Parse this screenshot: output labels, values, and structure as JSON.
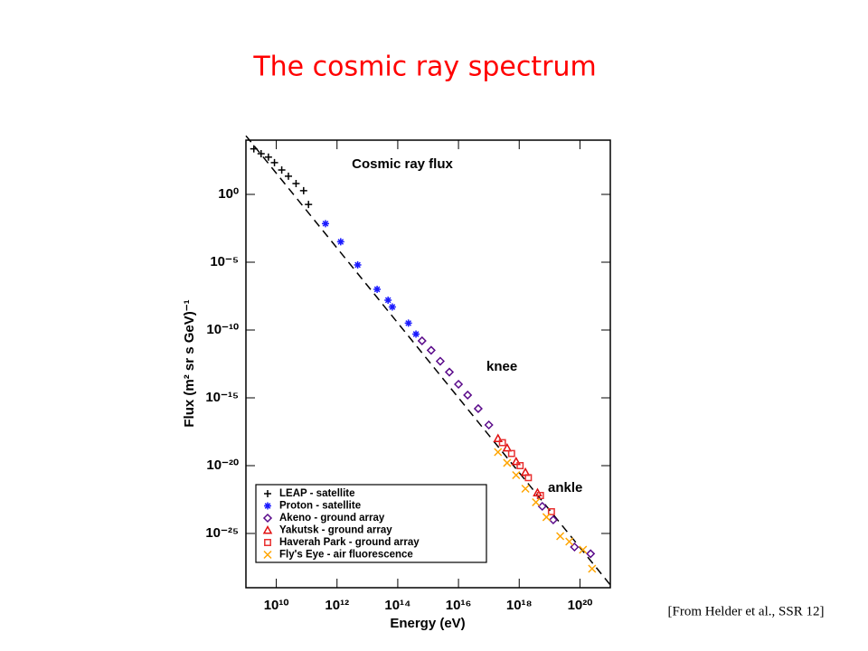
{
  "slide_title": "The cosmic ray spectrum",
  "source": "[From Helder et al., SSR 12]",
  "chart_data": {
    "type": "scatter",
    "title": "Cosmic ray flux",
    "x_label": "Energy (eV)",
    "y_label": "Flux (m² sr s GeV)⁻¹",
    "log_x": true,
    "log_y": true,
    "xlim": [
      1000000000.0,
      1e+21
    ],
    "ylim": [
      1e-29,
      10000.0
    ],
    "xticks": [
      {
        "value": 10000000000.0,
        "label": "10¹⁰"
      },
      {
        "value": 1000000000000.0,
        "label": "10¹²"
      },
      {
        "value": 100000000000000.0,
        "label": "10¹⁴"
      },
      {
        "value": 1e+16,
        "label": "10¹⁶"
      },
      {
        "value": 1e+18,
        "label": "10¹⁸"
      },
      {
        "value": 1e+20,
        "label": "10²⁰"
      }
    ],
    "yticks": [
      {
        "value": 1,
        "label": "10⁰"
      },
      {
        "value": 1e-05,
        "label": "10⁻⁵"
      },
      {
        "value": 1e-10,
        "label": "10⁻¹⁰"
      },
      {
        "value": 1e-15,
        "label": "10⁻¹⁵"
      },
      {
        "value": 1e-20,
        "label": "10⁻²⁰"
      },
      {
        "value": 1e-25,
        "label": "10⁻²⁵"
      }
    ],
    "legend": "lower left",
    "annotations": [
      "knee",
      "ankle"
    ],
    "reference_line": {
      "x": [
        1000000000.0,
        1e+21
      ],
      "values": [
        21000.0,
        1.6e-29
      ],
      "style": "dashed",
      "color": "#000000"
    },
    "series": [
      {
        "name": "LEAP - satellite",
        "marker": "plus",
        "color": "#000000",
        "x": [
          1820000000.0,
          3160000000.0,
          5500000000.0,
          8700000000.0,
          15100000000.0,
          25100000000.0,
          44700000000.0,
          79400000000.0,
          115000000000.0
        ],
        "values": [
          2300.0,
          1000.0,
          560.0,
          220.0,
          63,
          22,
          6.3,
          1.9,
          0.18
        ]
      },
      {
        "name": "Proton - satellite",
        "marker": "asterisk",
        "color": "#1a1aff",
        "x": [
          417000000000.0,
          1320000000000.0,
          4790000000000.0,
          20900000000000.0,
          47900000000000.0,
          66100000000000.0,
          224000000000000.0,
          398000000000000.0
        ],
        "values": [
          0.007,
          0.00032,
          6.3e-06,
          1e-07,
          1.6e-08,
          5e-09,
          3.2e-10,
          5e-11
        ]
      },
      {
        "name": "Akeno - ground array",
        "marker": "diamond",
        "color": "#5a0a8a",
        "x": [
          631000000000000.0,
          1260000000000000.0,
          2510000000000000.0,
          5010000000000000.0,
          1e+16,
          2e+16,
          4.47e+16,
          1e+17,
          5.75e+18,
          1.32e+19,
          6.61e+19,
          2.24e+20
        ],
        "values": [
          1.6e-11,
          3.2e-12,
          5e-13,
          7.9e-14,
          1e-14,
          1.6e-15,
          1.6e-16,
          1e-17,
          1e-23,
          1e-24,
          1e-26,
          3.2e-27
        ]
      },
      {
        "name": "Yakutsk - ground array",
        "marker": "triangle",
        "color": "#e01010",
        "x": [
          2e+17,
          4e+17,
          7.9e+17,
          1.6e+18,
          4e+18
        ],
        "values": [
          1e-18,
          2e-19,
          2e-20,
          3.2e-21,
          1e-22
        ]
      },
      {
        "name": "Haverah Park - ground array",
        "marker": "square",
        "color": "#e83030",
        "x": [
          2.8e+17,
          5.6e+17,
          1.07e+18,
          2e+18,
          5e+18,
          1.15e+19
        ],
        "values": [
          5e-19,
          7.9e-20,
          1e-20,
          1.3e-21,
          6.3e-23,
          4e-24
        ]
      },
      {
        "name": "Fly's Eye - air fluorescence",
        "marker": "x",
        "color": "#ffa500",
        "x": [
          2e+17,
          4e+17,
          7.9e+17,
          1.6e+18,
          3.55e+18,
          7.9e+18,
          2.24e+19,
          4.47e+19,
          1.26e+20,
          2.51e+20
        ],
        "values": [
          1e-19,
          1.6e-20,
          2e-21,
          2e-22,
          2e-23,
          1.6e-24,
          6.3e-26,
          2.5e-26,
          6.3e-27,
          2.5e-28
        ]
      }
    ]
  }
}
